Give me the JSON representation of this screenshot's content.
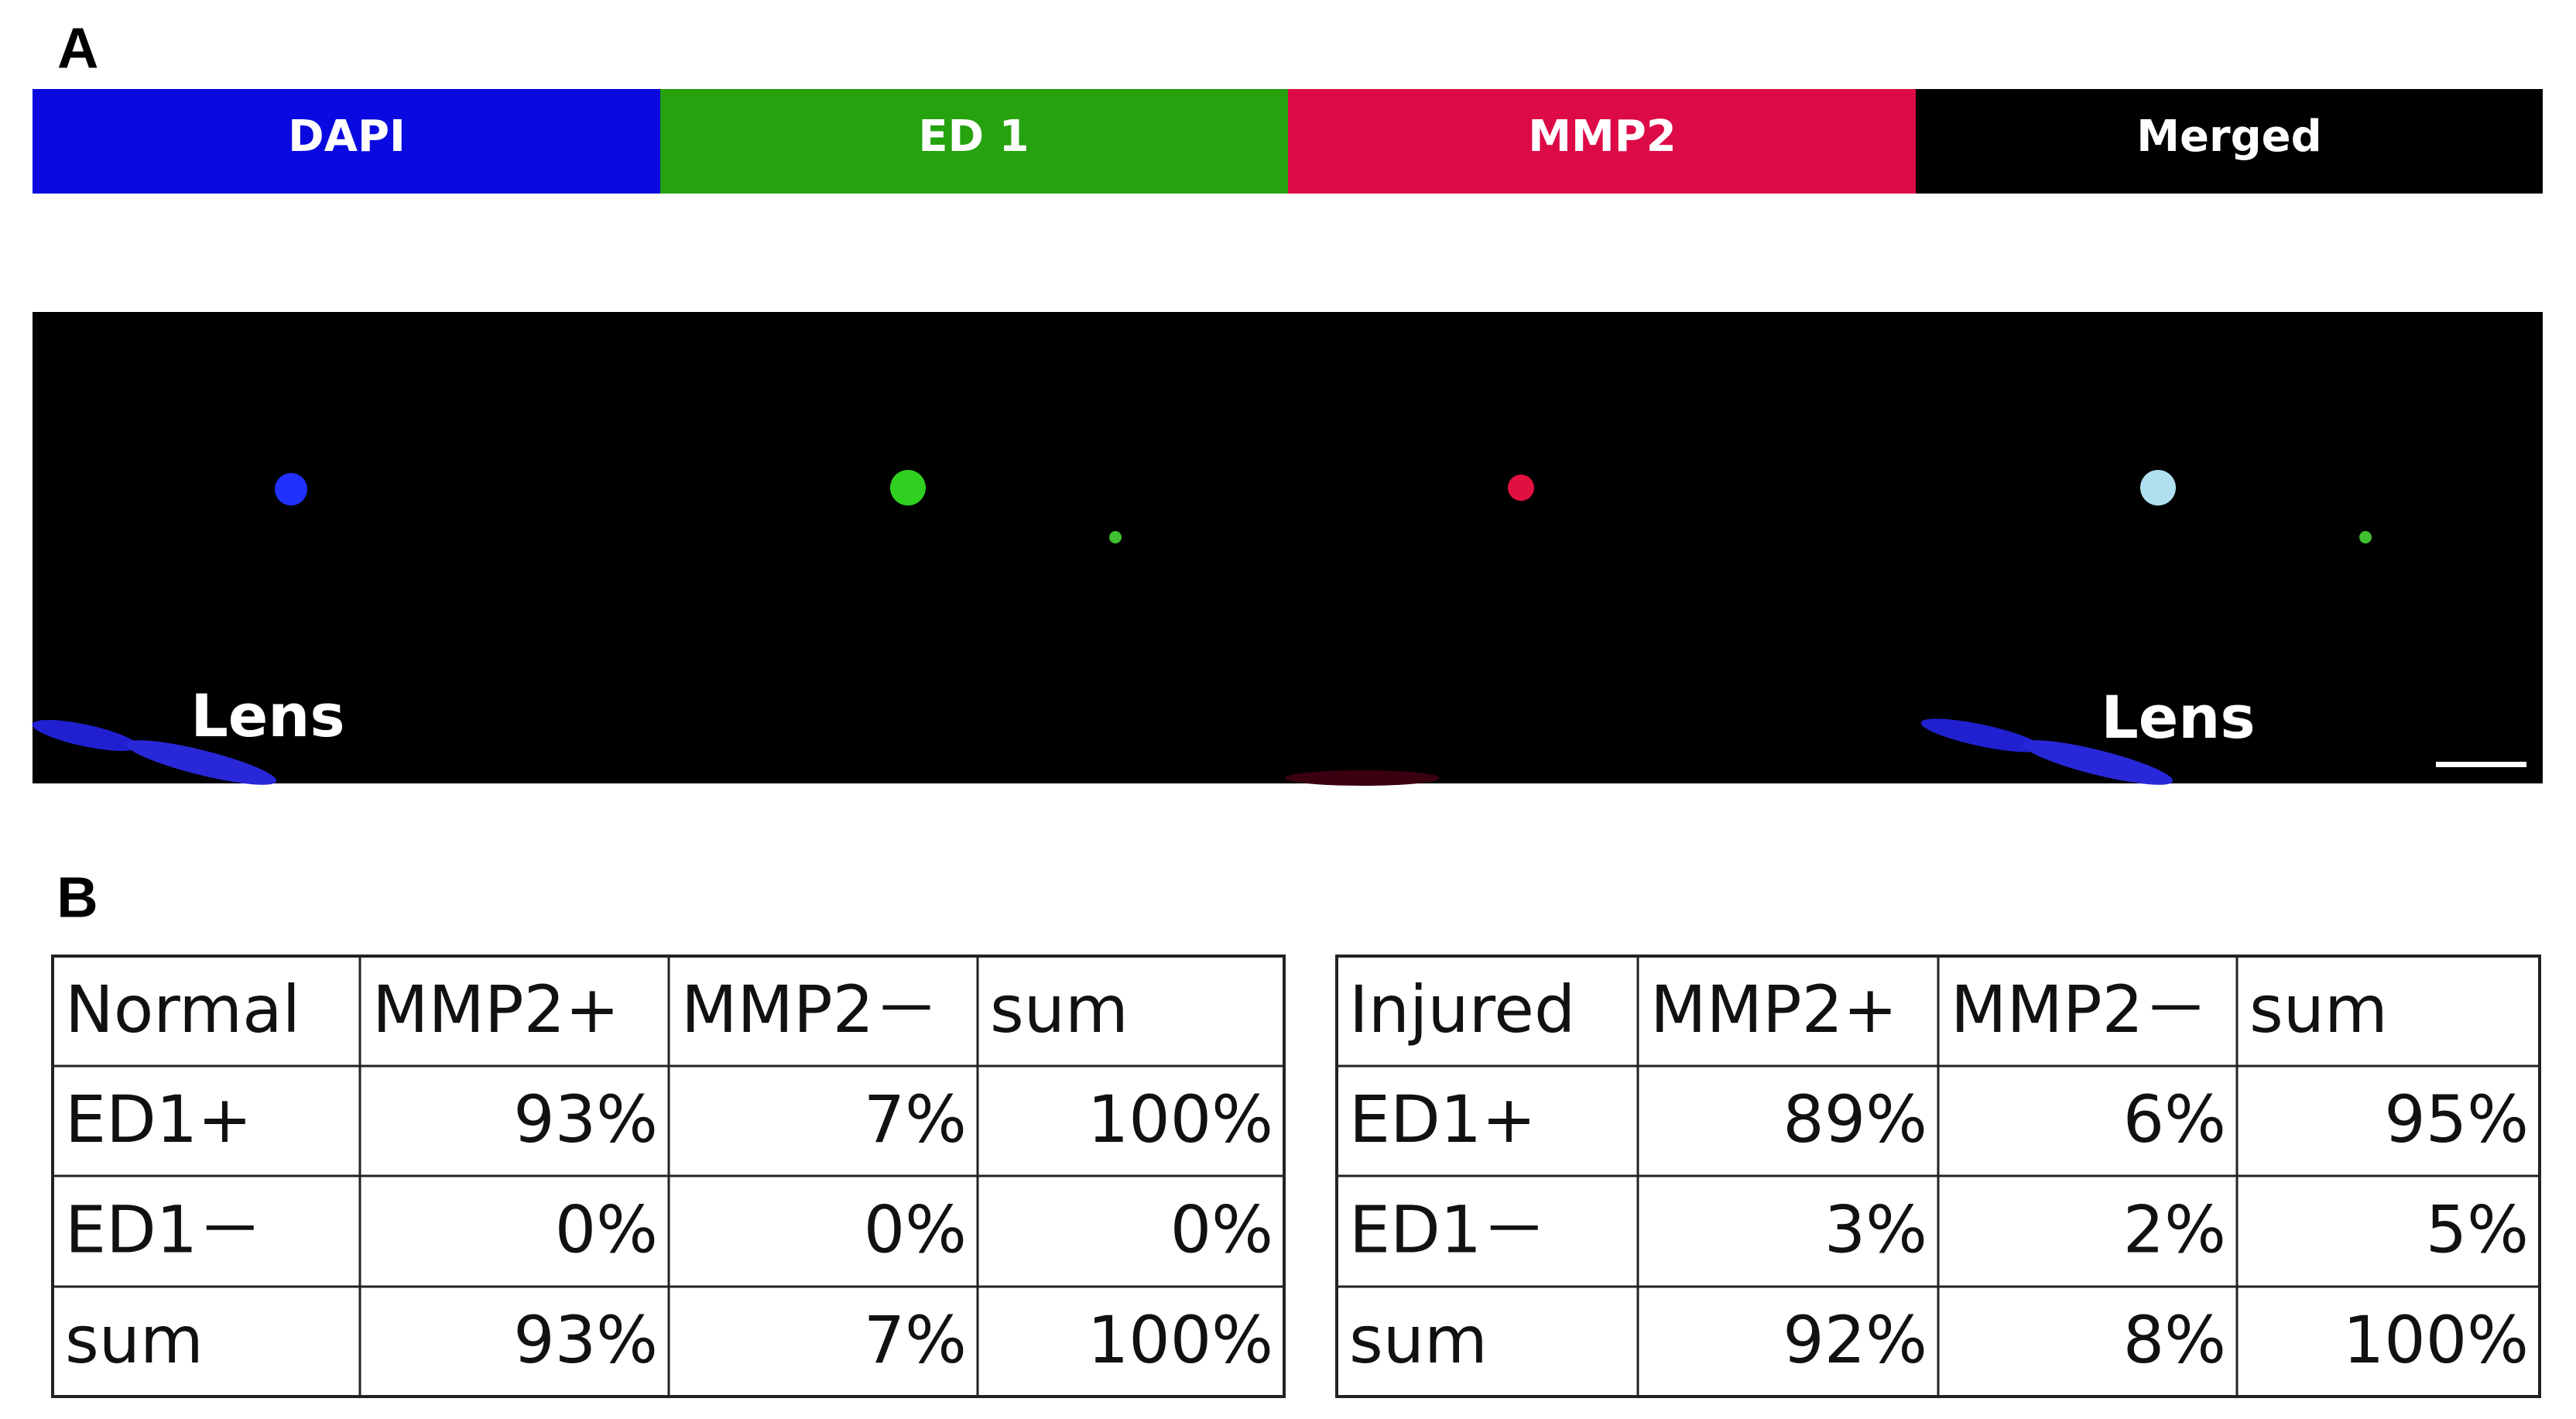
{
  "panel_a": {
    "label": "A",
    "channels": [
      "DAPI",
      "ED 1",
      "MMP2",
      "Merged"
    ],
    "lens_labels": [
      "Lens",
      "Lens"
    ]
  },
  "panel_b": {
    "label": "B",
    "tables": [
      {
        "header": [
          "Normal",
          "MMP2+",
          "MMP2－",
          "sum"
        ],
        "rows": [
          [
            "ED1+",
            "93%",
            "7%",
            "100%"
          ],
          [
            "ED1－",
            "0%",
            "0%",
            "0%"
          ],
          [
            "sum",
            "93%",
            "7%",
            "100%"
          ]
        ]
      },
      {
        "header": [
          "Injured",
          "MMP2+",
          "MMP2－",
          "sum"
        ],
        "rows": [
          [
            "ED1+",
            "89%",
            "6%",
            "95%"
          ],
          [
            "ED1－",
            "3%",
            "2%",
            "5%"
          ],
          [
            "sum",
            "92%",
            "8%",
            "100%"
          ]
        ]
      }
    ]
  }
}
